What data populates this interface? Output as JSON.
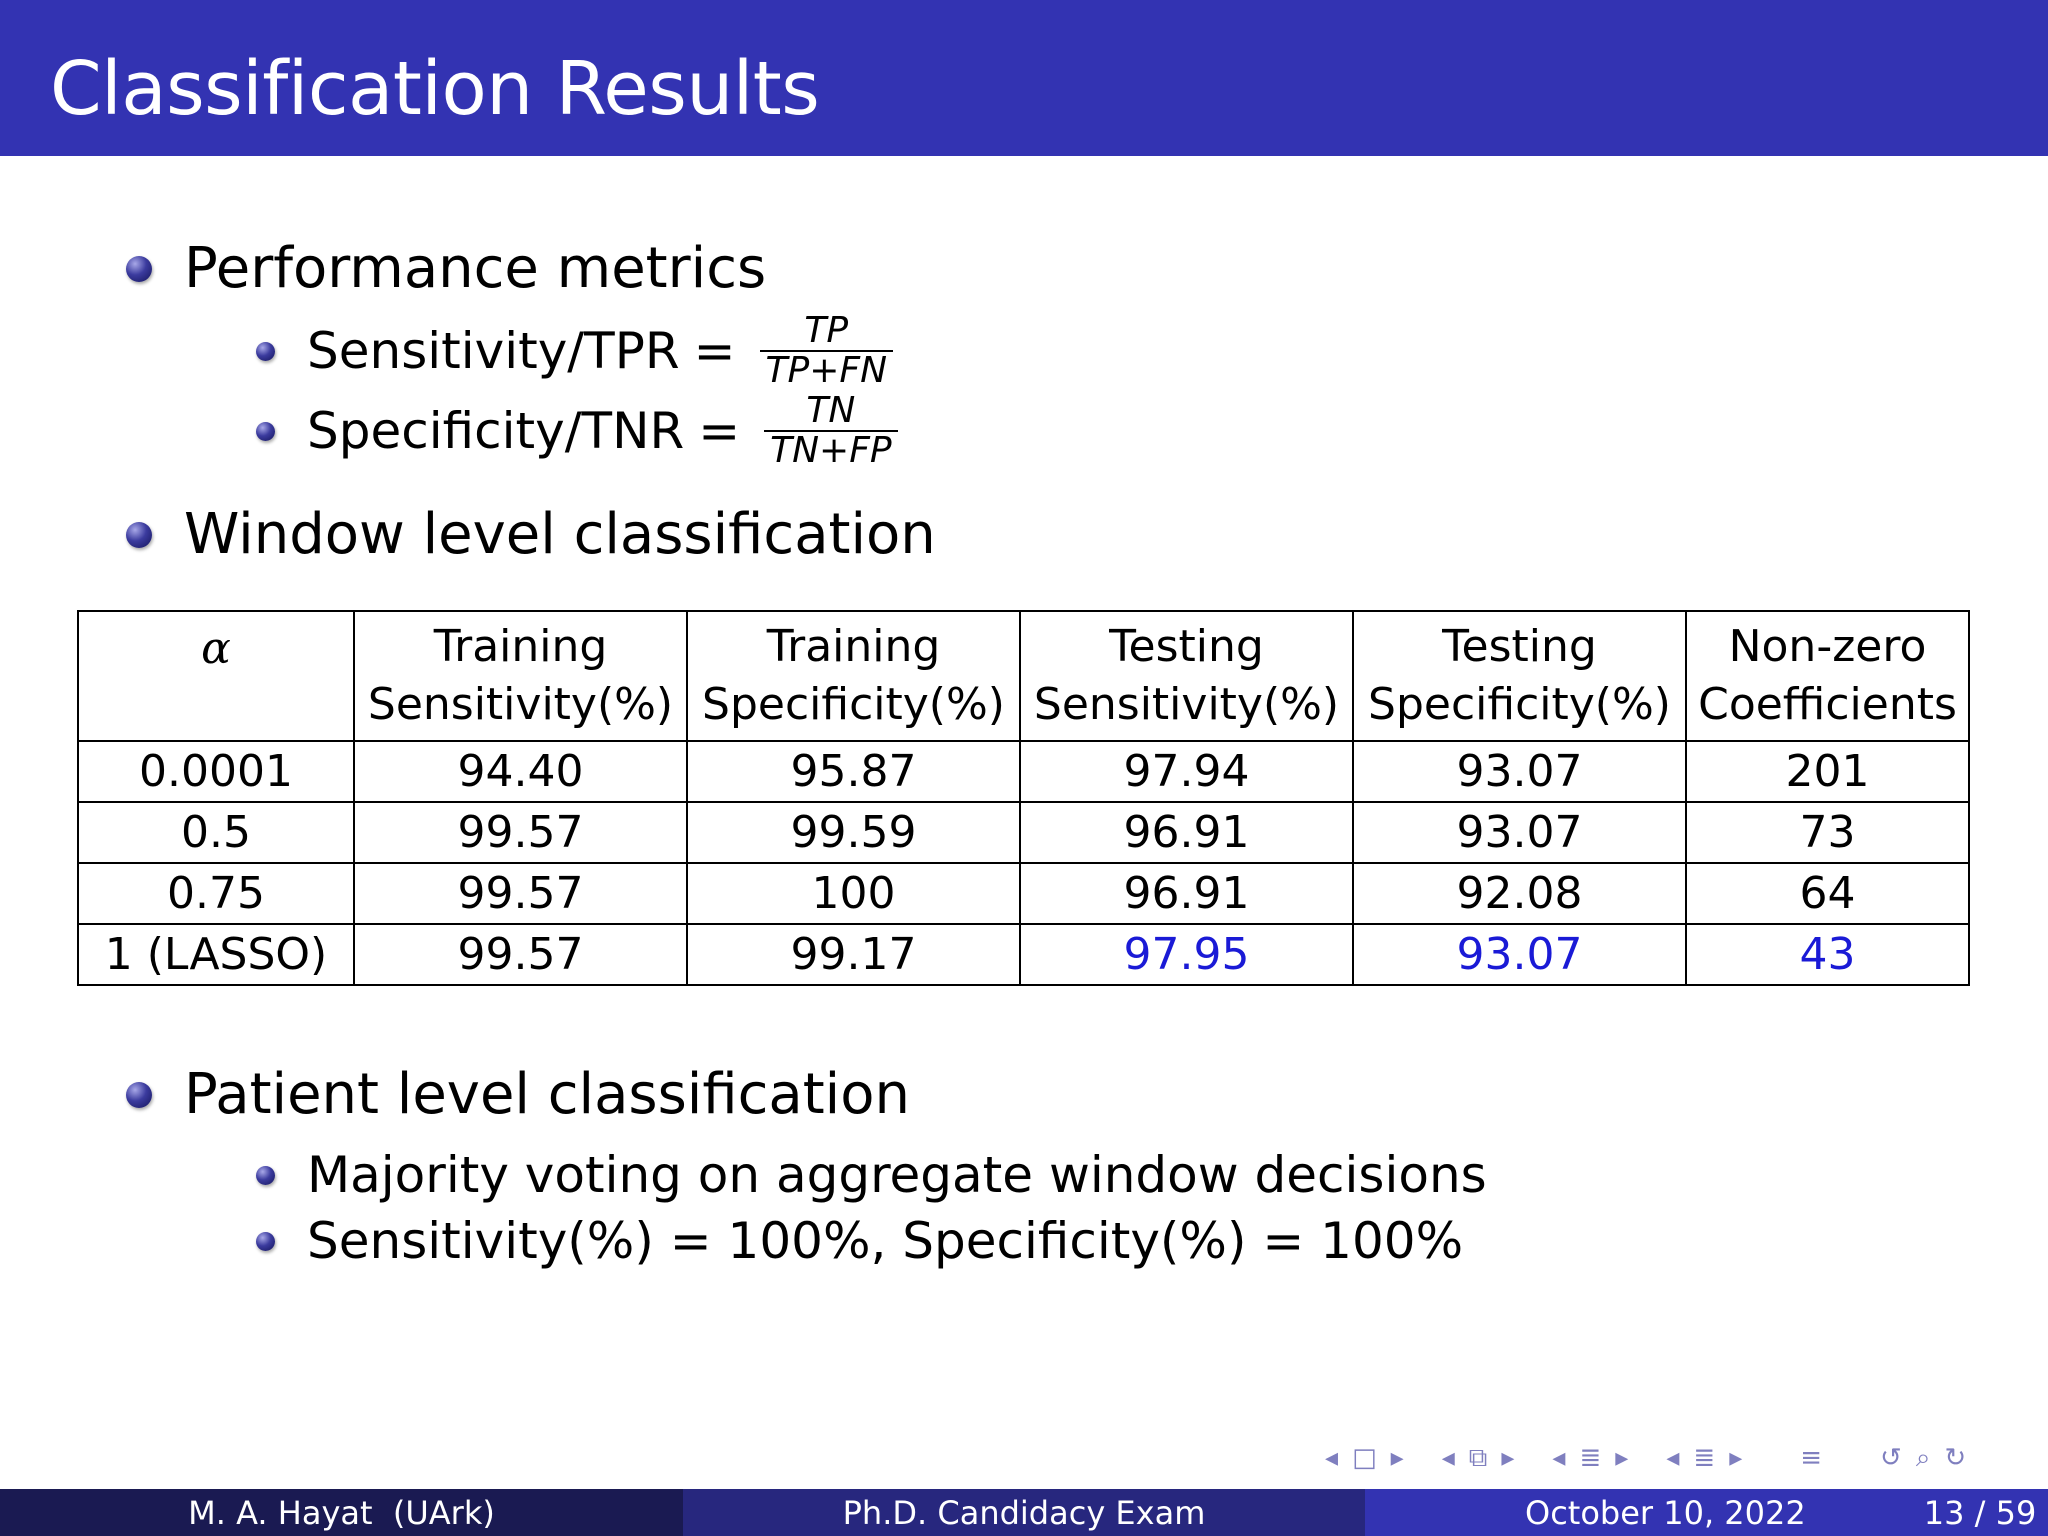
{
  "slide": {
    "title": "Classification Results",
    "bullets": {
      "performance": "Performance metrics",
      "sens_label": "Sensitivity/TPR",
      "sens_num": "TP",
      "sens_den": "TP+FN",
      "spec_label": "Specificity/TNR",
      "spec_num": "TN",
      "spec_den": "TN+FP",
      "equals": "=",
      "window": "Window level classification",
      "patient": "Patient level classification",
      "majority": "Majority voting on aggregate window decisions",
      "patient_result": "Sensitivity(%) = 100%, Specificity(%) = 100%"
    },
    "table": {
      "headers": [
        {
          "line1": "α",
          "line2": ""
        },
        {
          "line1": "Training",
          "line2": "Sensitivity(%)"
        },
        {
          "line1": "Training",
          "line2": "Specificity(%)"
        },
        {
          "line1": "Testing",
          "line2": "Sensitivity(%)"
        },
        {
          "line1": "Testing",
          "line2": "Specificity(%)"
        },
        {
          "line1": "Non-zero",
          "line2": "Coefficients"
        }
      ],
      "rows": [
        [
          "0.0001",
          "94.40",
          "95.87",
          "97.94",
          "93.07",
          "201"
        ],
        [
          "0.5",
          "99.57",
          "99.59",
          "96.91",
          "93.07",
          "73"
        ],
        [
          "0.75",
          "99.57",
          "100",
          "96.91",
          "92.08",
          "64"
        ],
        [
          "1 (LASSO)",
          "99.57",
          "99.17",
          "97.95",
          "93.07",
          "43"
        ]
      ],
      "highlight_color": "#1a1ad6"
    }
  },
  "footer": {
    "author": "M. A. Hayat  (UArk)",
    "event": "Ph.D. Candidacy Exam",
    "date": "October 10, 2022",
    "page": "13 / 59"
  },
  "nav": {
    "icons": [
      "nav-prev-icon",
      "frame-icon",
      "nav-next-icon",
      "nav-prev-icon",
      "subsection-icon",
      "nav-next-icon",
      "nav-prev-icon",
      "section-icon",
      "nav-next-icon",
      "nav-prev-icon",
      "align-icon",
      "nav-next-icon",
      "menu-icon",
      "loop-icon",
      "search-icon"
    ]
  },
  "colors": {
    "title_bar": "#3333b2",
    "footer_left": "#1a1a52",
    "footer_mid": "#27277e",
    "footer_right": "#3333b2"
  }
}
